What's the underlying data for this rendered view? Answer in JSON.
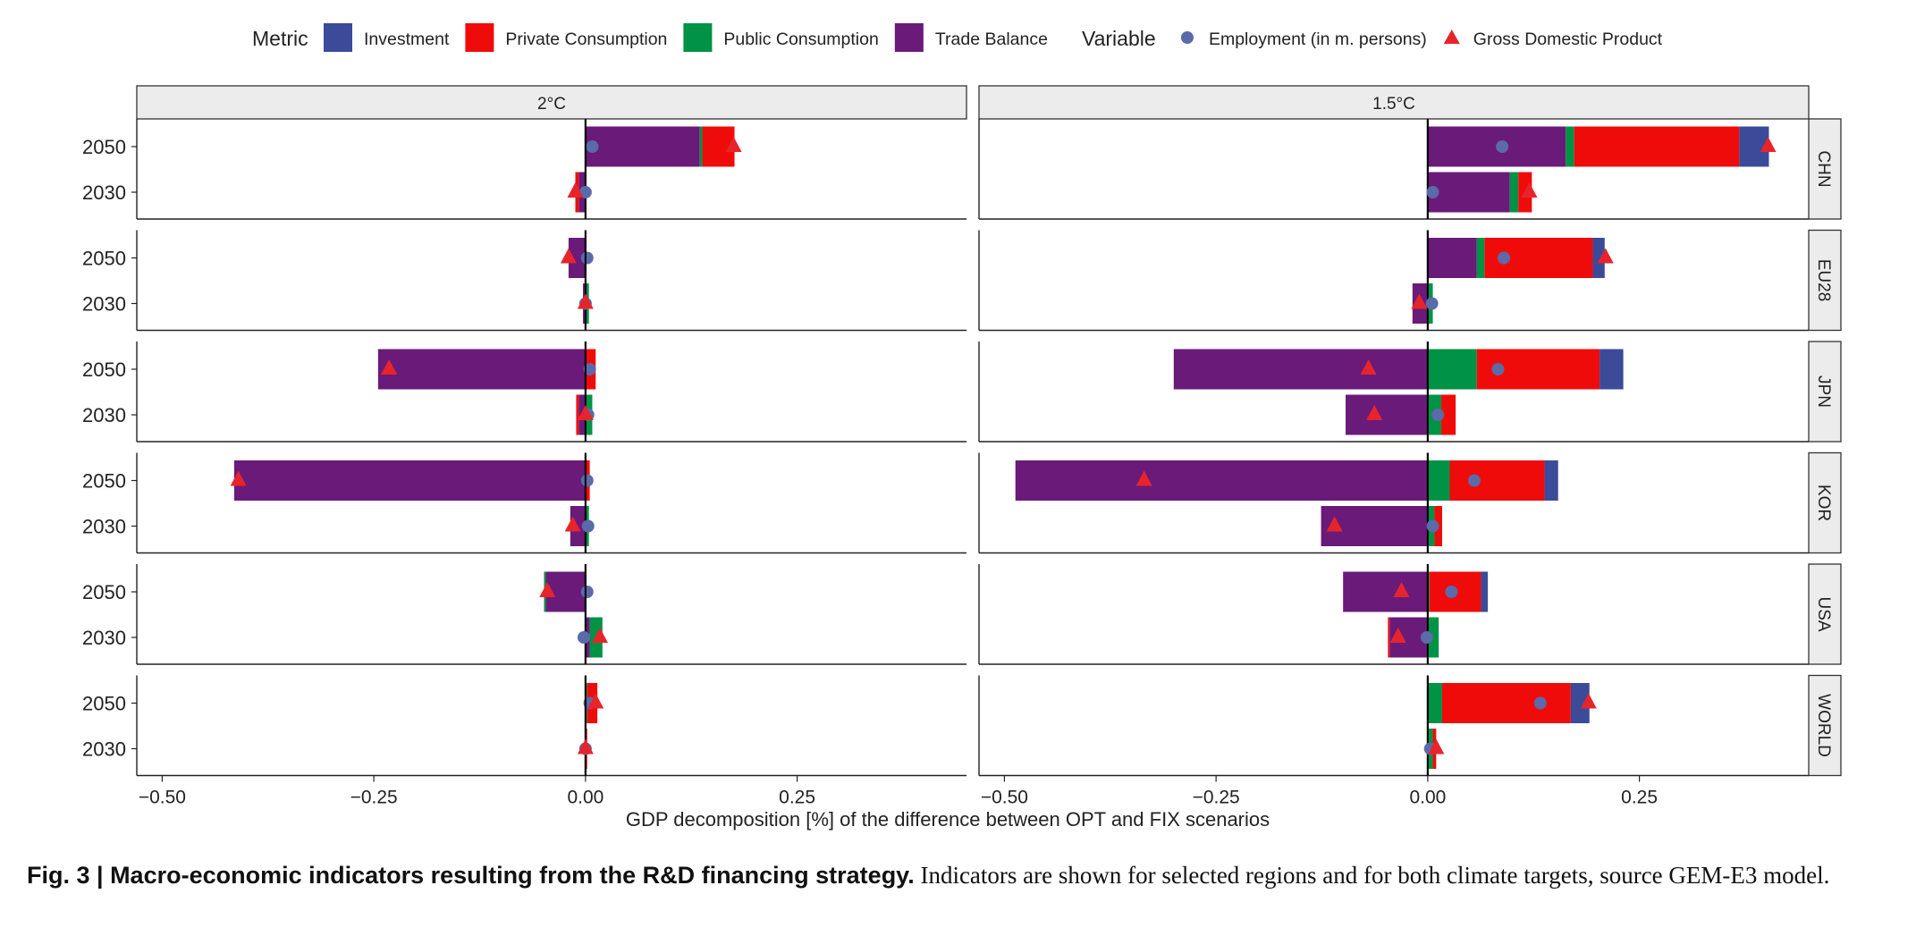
{
  "legend": {
    "metric_title": "Metric",
    "variable_title": "Variable",
    "metrics": [
      {
        "key": "investment",
        "label": "Investment",
        "color": "#3b4a99"
      },
      {
        "key": "private",
        "label": "Private Consumption",
        "color": "#f00b0b"
      },
      {
        "key": "public",
        "label": "Public Consumption",
        "color": "#009245"
      },
      {
        "key": "trade",
        "label": "Trade Balance",
        "color": "#6a1a79"
      }
    ],
    "variables": [
      {
        "key": "employment",
        "label": "Employment (in m. persons)",
        "color": "#5b6aa8",
        "shape": "circle"
      },
      {
        "key": "gdp",
        "label": "Gross Domestic Product",
        "color": "#e8242b",
        "shape": "triangle"
      }
    ]
  },
  "caption": {
    "bold": "Fig. 3 | Macro-economic indicators resulting from the R&D financing strategy.",
    "text": " Indicators are shown for selected regions and for both climate targets, source GEM-E3 model."
  },
  "chart_data": {
    "type": "bar",
    "orientation": "horizontal-stacked",
    "xlabel": "GDP decomposition [%] of the difference between OPT and FIX scenarios",
    "xlim": [
      -0.53,
      0.45
    ],
    "xticks": [
      -0.5,
      -0.25,
      0.0,
      0.25
    ],
    "xtick_labels": [
      "−0.50",
      "−0.25",
      "0.00",
      "0.25"
    ],
    "panels": [
      "2°C",
      "1.5°C"
    ],
    "regions": [
      "CHN",
      "EU28",
      "JPN",
      "KOR",
      "USA",
      "WORLD"
    ],
    "years": [
      "2050",
      "2030"
    ],
    "data": {
      "2°C": {
        "CHN": {
          "2050": {
            "trade": 0.135,
            "public": 0.003,
            "private": 0.038,
            "investment": 0.0,
            "employment": 0.008,
            "gdp": 0.175
          },
          "2030": {
            "trade": -0.008,
            "public": 0.0,
            "private": -0.004,
            "investment": 0.0,
            "employment": 0.0,
            "gdp": -0.012
          }
        },
        "EU28": {
          "2050": {
            "trade": -0.02,
            "public": 0.0,
            "private": 0.0,
            "investment": 0.0,
            "employment": 0.002,
            "gdp": -0.02
          },
          "2030": {
            "trade": -0.003,
            "public": 0.004,
            "private": 0.0,
            "investment": 0.0,
            "employment": 0.0,
            "gdp": 0.0
          }
        },
        "JPN": {
          "2050": {
            "trade": -0.245,
            "public": 0.0,
            "private": 0.012,
            "investment": 0.0,
            "employment": 0.005,
            "gdp": -0.232
          },
          "2030": {
            "trade": -0.008,
            "public": 0.008,
            "private": -0.003,
            "investment": 0.0,
            "employment": 0.003,
            "gdp": 0.0
          }
        },
        "KOR": {
          "2050": {
            "trade": -0.415,
            "public": 0.0,
            "private": 0.005,
            "investment": 0.0,
            "employment": 0.002,
            "gdp": -0.41
          },
          "2030": {
            "trade": -0.018,
            "public": 0.004,
            "private": 0.0,
            "investment": 0.0,
            "employment": 0.003,
            "gdp": -0.015
          }
        },
        "USA": {
          "2050": {
            "trade": -0.047,
            "public": -0.002,
            "private": 0.0,
            "investment": 0.0,
            "employment": 0.002,
            "gdp": -0.045
          },
          "2030": {
            "trade": 0.005,
            "public": 0.015,
            "private": 0.0,
            "investment": 0.0,
            "employment": -0.002,
            "gdp": 0.017
          }
        },
        "WORLD": {
          "2050": {
            "trade": 0.0,
            "public": 0.002,
            "private": 0.012,
            "investment": 0.0,
            "employment": 0.005,
            "gdp": 0.012
          },
          "2030": {
            "trade": 0.0,
            "public": 0.0,
            "private": 0.002,
            "investment": 0.0,
            "employment": 0.0,
            "gdp": 0.0
          }
        }
      },
      "1.5°C": {
        "CHN": {
          "2050": {
            "trade": 0.163,
            "public": 0.01,
            "private": 0.195,
            "investment": 0.035,
            "employment": 0.088,
            "gdp": 0.402
          },
          "2030": {
            "trade": 0.097,
            "public": 0.01,
            "private": 0.016,
            "investment": 0.0,
            "employment": 0.006,
            "gdp": 0.12
          }
        },
        "EU28": {
          "2050": {
            "trade": 0.058,
            "public": 0.009,
            "private": 0.128,
            "investment": 0.014,
            "employment": 0.09,
            "gdp": 0.21
          },
          "2030": {
            "trade": -0.018,
            "public": 0.006,
            "private": 0.0,
            "investment": 0.0,
            "employment": 0.005,
            "gdp": -0.01
          }
        },
        "JPN": {
          "2050": {
            "trade": -0.3,
            "public": 0.058,
            "private": 0.145,
            "investment": 0.028,
            "employment": 0.083,
            "gdp": -0.07
          },
          "2030": {
            "trade": -0.097,
            "public": 0.016,
            "private": 0.017,
            "investment": 0.0,
            "employment": 0.012,
            "gdp": -0.063
          }
        },
        "KOR": {
          "2050": {
            "trade": -0.487,
            "public": 0.026,
            "private": 0.112,
            "investment": 0.016,
            "employment": 0.055,
            "gdp": -0.335
          },
          "2030": {
            "trade": -0.126,
            "public": 0.008,
            "private": 0.009,
            "investment": 0.0,
            "employment": 0.006,
            "gdp": -0.11
          }
        },
        "USA": {
          "2050": {
            "trade": -0.1,
            "public": 0.002,
            "private": 0.061,
            "investment": 0.008,
            "employment": 0.028,
            "gdp": -0.031
          },
          "2030": {
            "trade": -0.045,
            "public": 0.013,
            "private": -0.002,
            "investment": 0.0,
            "employment": -0.001,
            "gdp": -0.035
          }
        },
        "WORLD": {
          "2050": {
            "trade": 0.0,
            "public": 0.017,
            "private": 0.152,
            "investment": 0.022,
            "employment": 0.133,
            "gdp": 0.19
          },
          "2030": {
            "trade": 0.0,
            "public": 0.006,
            "private": 0.004,
            "investment": 0.0,
            "employment": 0.003,
            "gdp": 0.01
          }
        }
      }
    }
  }
}
